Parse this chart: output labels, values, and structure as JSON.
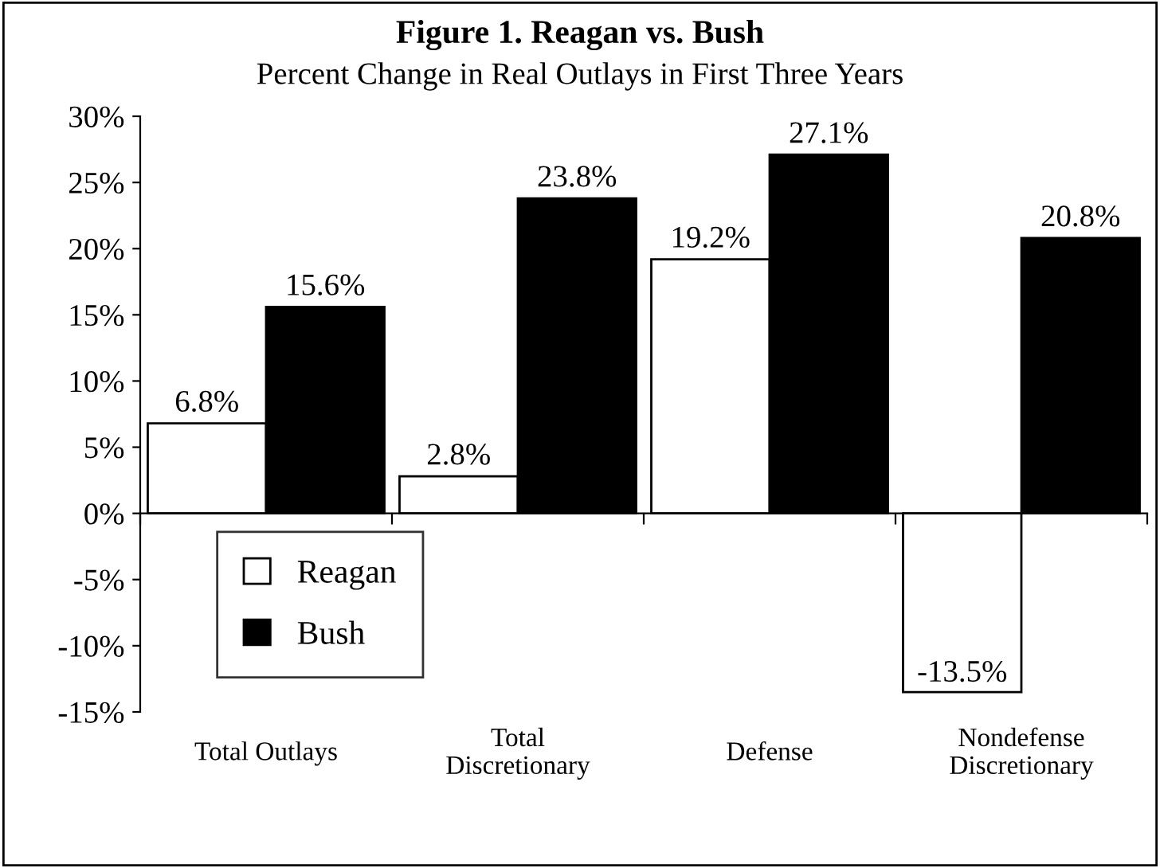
{
  "chart_data": {
    "type": "bar",
    "title": "Figure 1. Reagan vs. Bush",
    "subtitle": "Percent Change in Real Outlays in First Three Years",
    "categories": [
      "Total Outlays",
      "Total\nDiscretionary",
      "Defense",
      "Nondefense\nDiscretionary"
    ],
    "series": [
      {
        "name": "Reagan",
        "color": "#ffffff",
        "values": [
          6.8,
          2.8,
          19.2,
          -13.5
        ],
        "value_labels": [
          "6.8%",
          "2.8%",
          "19.2%",
          "-13.5%"
        ]
      },
      {
        "name": "Bush",
        "color": "#000000",
        "values": [
          15.6,
          23.8,
          27.1,
          20.8
        ],
        "value_labels": [
          "15.6%",
          "23.8%",
          "27.1%",
          "20.8%"
        ]
      }
    ],
    "ylim": [
      -15,
      30
    ],
    "yticks": [
      {
        "value": -15,
        "label": "-15%"
      },
      {
        "value": -10,
        "label": "-10%"
      },
      {
        "value": -5,
        "label": "-5%"
      },
      {
        "value": 0,
        "label": "0%"
      },
      {
        "value": 5,
        "label": "5%"
      },
      {
        "value": 10,
        "label": "10%"
      },
      {
        "value": 15,
        "label": "15%"
      },
      {
        "value": 20,
        "label": "20%"
      },
      {
        "value": 25,
        "label": "25%"
      },
      {
        "value": 30,
        "label": "30%"
      }
    ],
    "legend": "bottom left"
  }
}
